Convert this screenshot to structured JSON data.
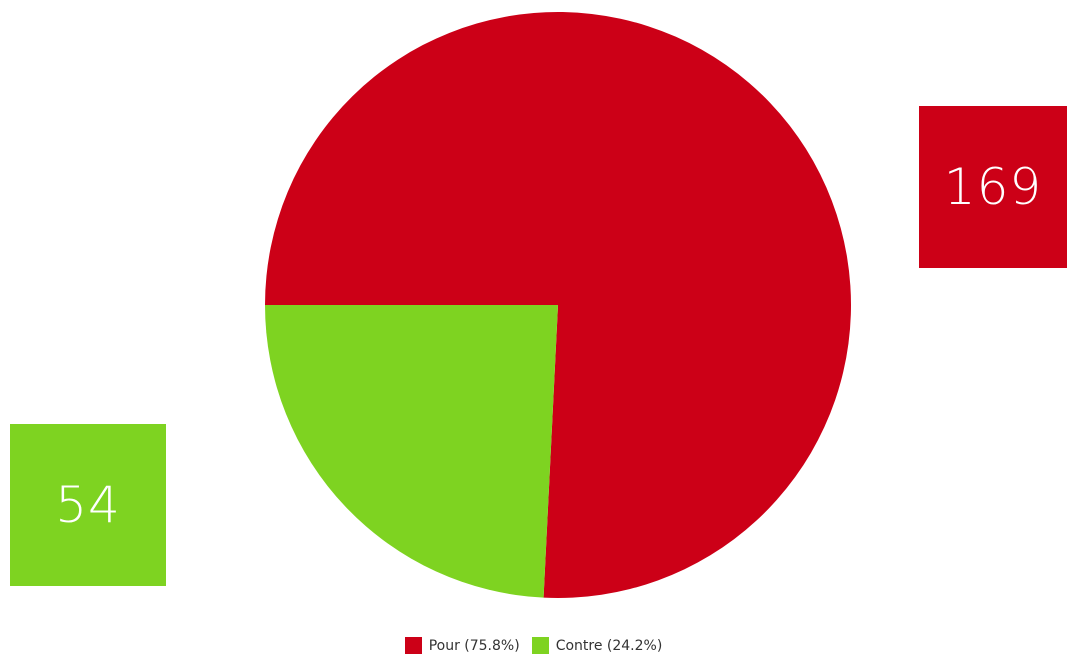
{
  "colors": {
    "pour": "#cc0017",
    "contre": "#7ed321"
  },
  "chart_data": {
    "type": "pie",
    "slices": [
      {
        "label": "Pour",
        "value": 169,
        "percent": 75.8,
        "legend": "Pour (75.8%)",
        "color": "#cc0017"
      },
      {
        "label": "Contre",
        "value": 54,
        "percent": 24.2,
        "legend": "Contre (24.2%)",
        "color": "#7ed321"
      }
    ],
    "legend_position": "bottom"
  },
  "counts": {
    "pour": "169",
    "contre": "54"
  }
}
